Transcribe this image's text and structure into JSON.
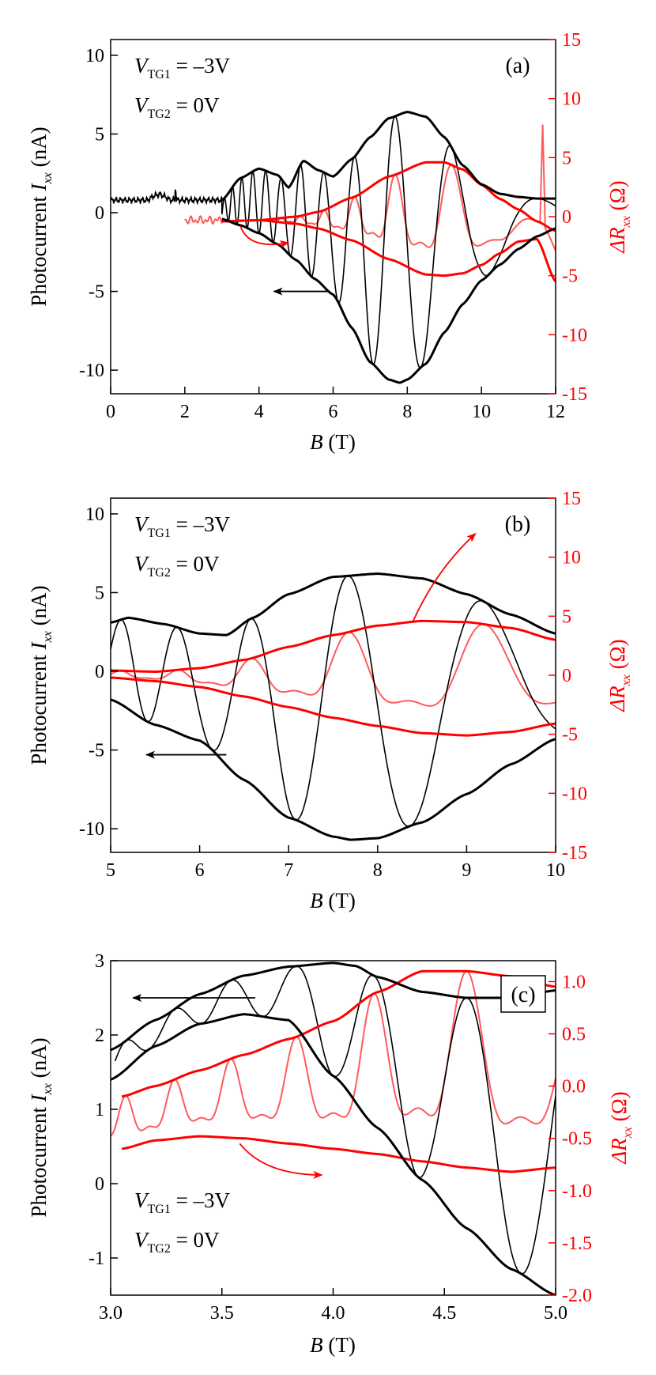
{
  "colors": {
    "left": "#000000",
    "right": "#ff0000",
    "right_light": "#ff5a5a"
  },
  "chart_data": [
    {
      "type": "line",
      "panel": "(a)",
      "xlabel_italic": "B",
      "xlabel_unit": "(T)",
      "ylabel_left_text": "Photocurrent",
      "ylabel_left_sym": "I",
      "ylabel_left_sub": "xx",
      "ylabel_left_unit": "(nA)",
      "ylabel_right_sym": "ΔR",
      "ylabel_right_sub": "xx",
      "ylabel_right_unit": "(Ω)",
      "annotations": {
        "v1": "V",
        "v1_sub": "TG1",
        "v1_val": " = –3V",
        "v2": "V",
        "v2_sub": "TG2",
        "v2_val": " = 0V"
      },
      "xlim": [
        0,
        12
      ],
      "ylim_left": [
        -11.5,
        11
      ],
      "ylim_right": [
        -15,
        15
      ],
      "xticks": [
        0,
        2,
        4,
        6,
        8,
        10,
        12
      ],
      "xtick_labels": [
        "0",
        "2",
        "4",
        "6",
        "8",
        "10",
        "12"
      ],
      "yticks_left": [
        -10,
        -5,
        0,
        5,
        10
      ],
      "ytick_labels_left": [
        "-10",
        "-5",
        "0",
        "5",
        "10"
      ],
      "yticks_right": [
        -15,
        -10,
        -5,
        0,
        5,
        10,
        15
      ],
      "ytick_labels_right": [
        "-15",
        "-10",
        "-5",
        "0",
        "5",
        "10",
        "15"
      ],
      "envelopes_left": [
        {
          "name": "upper",
          "x": [
            3.0,
            3.5,
            4.0,
            4.5,
            4.8,
            5.2,
            5.6,
            6.0,
            6.5,
            7.0,
            7.5,
            8.0,
            8.5,
            9.0,
            9.5,
            10.0,
            10.5,
            11.0,
            11.5,
            12.0
          ],
          "y": [
            0.8,
            2.2,
            2.8,
            2.4,
            1.6,
            3.3,
            2.7,
            2.3,
            3.4,
            4.8,
            6.0,
            6.4,
            6.1,
            4.8,
            3.0,
            1.8,
            1.2,
            1.0,
            0.9,
            0.9
          ]
        },
        {
          "name": "lower",
          "x": [
            3.0,
            3.5,
            4.0,
            4.5,
            5.0,
            5.5,
            6.0,
            6.5,
            7.0,
            7.5,
            7.8,
            8.0,
            8.5,
            9.0,
            9.5,
            10.0,
            10.5,
            11.0,
            11.5,
            12.0
          ],
          "y": [
            -0.4,
            -0.8,
            -1.3,
            -2.0,
            -3.0,
            -4.2,
            -5.2,
            -7.3,
            -9.5,
            -10.6,
            -10.8,
            -10.6,
            -9.6,
            -7.6,
            -5.8,
            -4.3,
            -3.3,
            -2.3,
            -1.5,
            -1.0
          ]
        }
      ],
      "envelopes_right": [
        {
          "name": "upper",
          "x": [
            3.0,
            4.0,
            5.0,
            5.6,
            6.5,
            7.5,
            8.5,
            9.0,
            9.5,
            10.0,
            10.5,
            11.0,
            11.5,
            12.0
          ],
          "y": [
            -0.4,
            -0.3,
            0.0,
            0.4,
            1.6,
            3.4,
            4.6,
            4.6,
            4.0,
            2.7,
            1.5,
            0.6,
            -0.4,
            -1.2
          ]
        },
        {
          "name": "lower",
          "x": [
            3.0,
            4.0,
            5.0,
            5.6,
            6.5,
            7.5,
            8.5,
            9.0,
            9.5,
            10.0,
            10.5,
            11.0,
            11.5,
            12.0
          ],
          "y": [
            -0.4,
            -0.3,
            -0.6,
            -1.0,
            -2.0,
            -3.6,
            -4.9,
            -5.0,
            -4.8,
            -4.1,
            -3.1,
            -2.1,
            -1.9,
            -5.5
          ]
        }
      ],
      "osc_left": {
        "x_start": 3.0,
        "x_end": 12.0,
        "freq_B1": 46,
        "noise_x_end": 3.0,
        "noise_level": 0.8
      },
      "osc_right": {
        "x_start": 2.0,
        "x_end": 12.0,
        "freq_B1": 46,
        "spike_x": 11.65,
        "spike_y": 7.8
      },
      "arrows": [
        {
          "series": "left",
          "from": [
            5.9,
            -5.0
          ],
          "to": [
            4.4,
            -5.0
          ]
        },
        {
          "series": "right",
          "from": [
            3.5,
            -0.8
          ],
          "to": [
            4.8,
            -2.2
          ]
        }
      ]
    },
    {
      "type": "line",
      "panel": "(b)",
      "xlabel_italic": "B",
      "xlabel_unit": "(T)",
      "ylabel_left_text": "Photocurrent",
      "ylabel_left_sym": "I",
      "ylabel_left_sub": "xx",
      "ylabel_left_unit": "(nA)",
      "ylabel_right_sym": "ΔR",
      "ylabel_right_sub": "xx",
      "ylabel_right_unit": "(Ω)",
      "annotations": {
        "v1": "V",
        "v1_sub": "TG1",
        "v1_val": " = –3V",
        "v2": "V",
        "v2_sub": "TG2",
        "v2_val": " = 0V"
      },
      "xlim": [
        5,
        10
      ],
      "ylim_left": [
        -11.5,
        11
      ],
      "ylim_right": [
        -15,
        15
      ],
      "xticks": [
        5,
        6,
        7,
        8,
        9,
        10
      ],
      "xtick_labels": [
        "5",
        "6",
        "7",
        "8",
        "9",
        "10"
      ],
      "yticks_left": [
        -10,
        -5,
        0,
        5,
        10
      ],
      "ytick_labels_left": [
        "-10",
        "-5",
        "0",
        "5",
        "10"
      ],
      "yticks_right": [
        -15,
        -10,
        -5,
        0,
        5,
        10,
        15
      ],
      "ytick_labels_right": [
        "-15",
        "-10",
        "-5",
        "0",
        "5",
        "10",
        "15"
      ],
      "envelopes_left": [
        {
          "name": "upper",
          "x": [
            5.0,
            5.2,
            5.6,
            6.0,
            6.3,
            6.6,
            7.0,
            7.5,
            8.0,
            8.5,
            9.0,
            9.5,
            10.0
          ],
          "y": [
            3.1,
            3.4,
            3.0,
            2.4,
            2.3,
            3.4,
            4.9,
            6.0,
            6.2,
            5.9,
            4.9,
            3.6,
            2.4
          ]
        },
        {
          "name": "lower",
          "x": [
            5.0,
            5.5,
            6.0,
            6.5,
            7.0,
            7.5,
            7.7,
            8.0,
            8.5,
            9.0,
            9.5,
            10.0
          ],
          "y": [
            -1.8,
            -3.4,
            -4.4,
            -6.9,
            -9.3,
            -10.5,
            -10.7,
            -10.6,
            -9.6,
            -7.8,
            -5.9,
            -4.3
          ]
        }
      ],
      "envelopes_right": [
        {
          "name": "upper",
          "x": [
            5.0,
            5.5,
            6.0,
            6.5,
            7.0,
            7.5,
            8.0,
            8.5,
            9.0,
            9.5,
            10.0
          ],
          "y": [
            0.4,
            0.3,
            0.6,
            1.3,
            2.4,
            3.4,
            4.2,
            4.6,
            4.5,
            4.0,
            3.0
          ]
        },
        {
          "name": "lower",
          "x": [
            5.0,
            5.5,
            6.0,
            6.5,
            7.0,
            7.5,
            8.0,
            8.5,
            9.0,
            9.5,
            10.0
          ],
          "y": [
            -0.2,
            -0.5,
            -1.0,
            -1.8,
            -2.7,
            -3.6,
            -4.3,
            -4.9,
            -5.1,
            -4.8,
            -4.1
          ]
        }
      ],
      "osc_left": {
        "x_start": 5.0,
        "x_end": 10.0,
        "freq_B1": 46
      },
      "osc_right": {
        "x_start": 5.0,
        "x_end": 10.0,
        "freq_B1": 46
      },
      "arrows": [
        {
          "series": "left",
          "from": [
            6.3,
            -5.3
          ],
          "to": [
            5.4,
            -5.3
          ]
        },
        {
          "series": "right",
          "from": [
            8.4,
            4.6
          ],
          "to": [
            9.1,
            12.0
          ]
        }
      ]
    },
    {
      "type": "line",
      "panel": "(c)",
      "xlabel_italic": "B",
      "xlabel_unit": "(T)",
      "ylabel_left_text": "Photocurrent",
      "ylabel_left_sym": "I",
      "ylabel_left_sub": "xx",
      "ylabel_left_unit": "(nA)",
      "ylabel_right_sym": "ΔR",
      "ylabel_right_sub": "xx",
      "ylabel_right_unit": "(Ω)",
      "annotations": {
        "v1": "V",
        "v1_sub": "TG1",
        "v1_val": " = –3V",
        "v2": "V",
        "v2_sub": "TG2",
        "v2_val": " = 0V"
      },
      "xlim": [
        3.0,
        5.0
      ],
      "ylim_left": [
        -1.5,
        3.0
      ],
      "ylim_right": [
        -2.0,
        1.2
      ],
      "xticks": [
        3.0,
        3.5,
        4.0,
        4.5,
        5.0
      ],
      "xtick_labels": [
        "3.0",
        "3.5",
        "4.0",
        "4.5",
        "5.0"
      ],
      "yticks_left": [
        -1,
        0,
        1,
        2,
        3
      ],
      "ytick_labels_left": [
        "-1",
        "0",
        "1",
        "2",
        "3"
      ],
      "yticks_right": [
        -2.0,
        -1.5,
        -1.0,
        -0.5,
        0.0,
        0.5,
        1.0
      ],
      "ytick_labels_right": [
        "-2.0",
        "-1.5",
        "-1.0",
        "-0.5",
        "0.0",
        "0.5",
        "1.0"
      ],
      "envelopes_left": [
        {
          "name": "upper",
          "x": [
            3.0,
            3.2,
            3.4,
            3.6,
            3.8,
            4.0,
            4.1,
            4.2,
            4.4,
            4.6,
            4.8,
            5.0
          ],
          "y": [
            1.8,
            2.2,
            2.55,
            2.8,
            2.92,
            2.97,
            2.93,
            2.78,
            2.58,
            2.5,
            2.5,
            2.6
          ]
        },
        {
          "name": "lower",
          "x": [
            3.0,
            3.2,
            3.4,
            3.6,
            3.8,
            4.0,
            4.2,
            4.4,
            4.6,
            4.8,
            5.0
          ],
          "y": [
            1.4,
            1.85,
            2.15,
            2.28,
            2.2,
            1.45,
            0.75,
            0.05,
            -0.6,
            -1.15,
            -1.5
          ]
        }
      ],
      "envelopes_right": [
        {
          "name": "upper",
          "x": [
            3.05,
            3.2,
            3.4,
            3.6,
            3.8,
            4.0,
            4.2,
            4.4,
            4.6,
            4.8,
            5.0
          ],
          "y": [
            -0.1,
            0.0,
            0.15,
            0.3,
            0.45,
            0.62,
            0.9,
            1.1,
            1.1,
            1.05,
            0.95
          ]
        },
        {
          "name": "lower",
          "x": [
            3.05,
            3.2,
            3.4,
            3.6,
            3.8,
            4.0,
            4.2,
            4.4,
            4.6,
            4.8,
            5.0
          ],
          "y": [
            -0.6,
            -0.52,
            -0.48,
            -0.5,
            -0.55,
            -0.6,
            -0.65,
            -0.72,
            -0.78,
            -0.82,
            -0.78
          ]
        }
      ],
      "osc_left": {
        "x_start": 3.02,
        "x_end": 5.0,
        "freq_B1": 46
      },
      "osc_right": {
        "x_start": 3.0,
        "x_end": 5.0,
        "freq_B1": 46
      },
      "arrows": [
        {
          "series": "left",
          "from": [
            3.65,
            2.5
          ],
          "to": [
            3.1,
            2.5
          ]
        },
        {
          "series": "right",
          "from": [
            3.58,
            -0.55
          ],
          "to": [
            3.95,
            -0.85
          ]
        }
      ]
    }
  ]
}
